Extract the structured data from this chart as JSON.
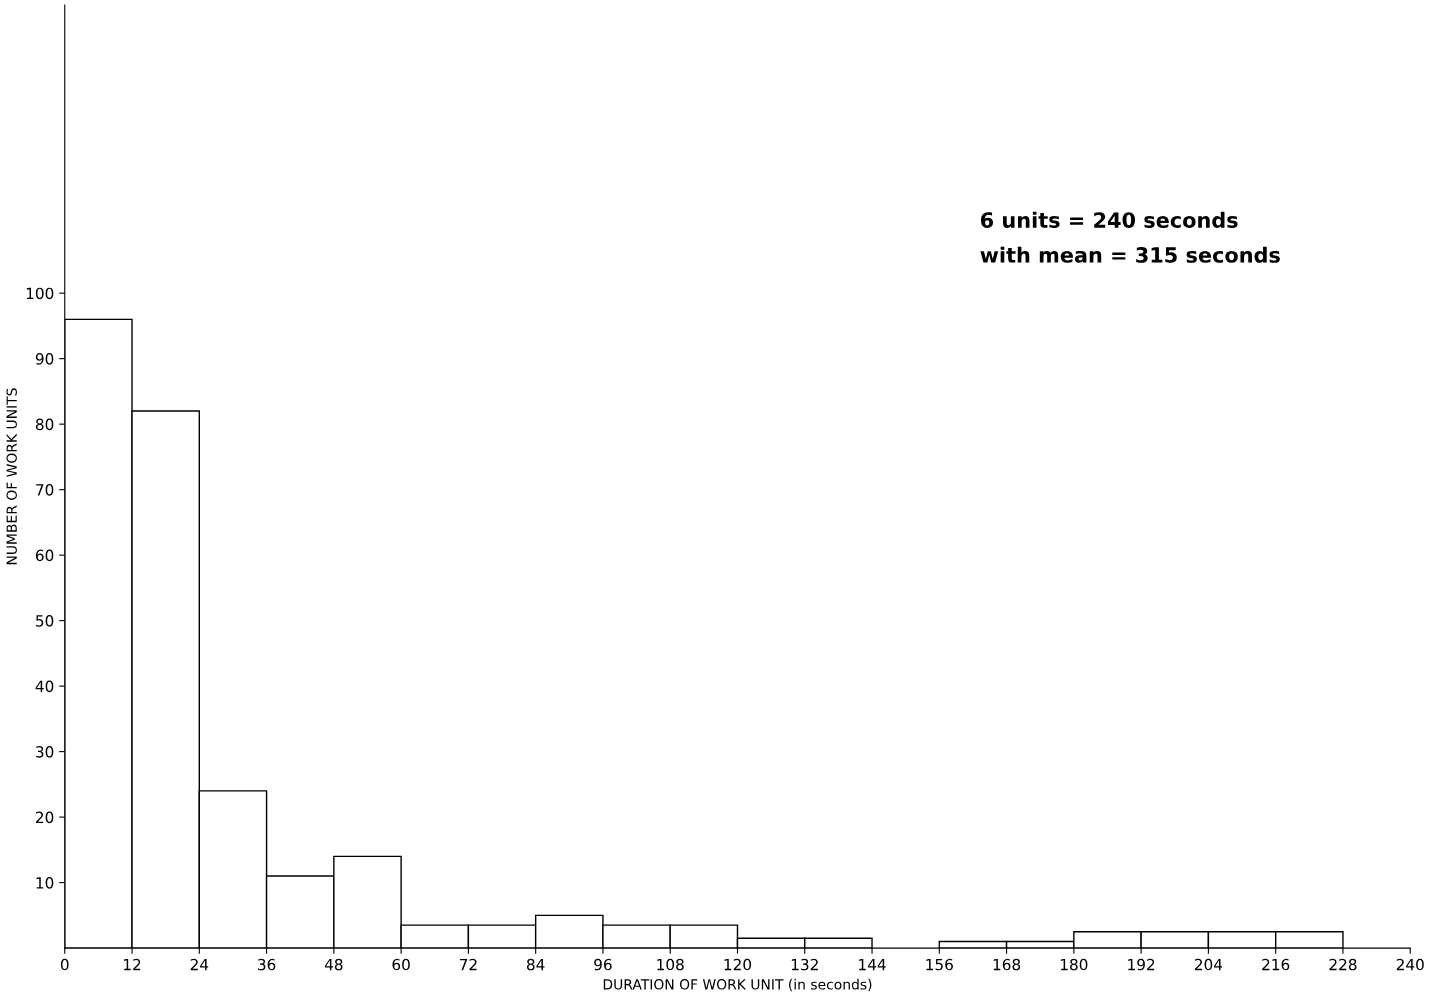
{
  "chart_data": {
    "type": "histogram",
    "xlabel": "DURATION OF WORK UNIT (in seconds)",
    "ylabel": "NUMBER OF WORK UNITS",
    "bins": [
      0,
      12,
      24,
      36,
      48,
      60,
      72,
      84,
      96,
      108,
      120,
      132,
      144,
      156,
      168,
      180,
      192,
      204,
      216,
      228,
      240
    ],
    "values": [
      96,
      82,
      24,
      11,
      14,
      3.5,
      3.5,
      5,
      3.5,
      3.5,
      1.5,
      1.5,
      0,
      1,
      1,
      2.5,
      2.5,
      2.5,
      2.5,
      0
    ],
    "color": "#ffffff",
    "xlim": [
      0,
      240
    ],
    "ylim": [
      0,
      144
    ],
    "xticks": [
      0,
      12,
      24,
      36,
      48,
      60,
      72,
      84,
      96,
      108,
      120,
      132,
      144,
      156,
      168,
      180,
      192,
      204,
      216,
      228,
      240
    ],
    "yticks": [
      10,
      20,
      30,
      40,
      50,
      60,
      70,
      80,
      90,
      100
    ],
    "annotations": [
      "6 units = 240 seconds",
      "with mean = 315 seconds"
    ],
    "grid": false,
    "legend": false
  }
}
